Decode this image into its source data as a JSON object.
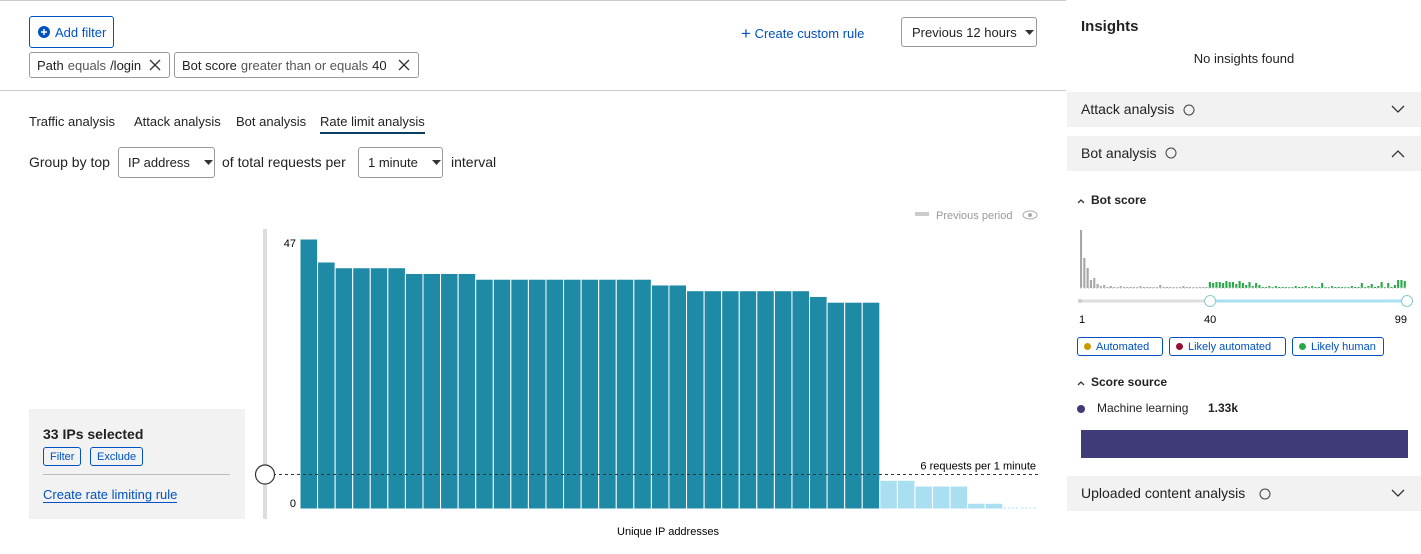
{
  "filters": {
    "add_filter": "Add filter",
    "items": [
      {
        "field": "Path",
        "operator": "equals",
        "value": "/login"
      },
      {
        "field": "Bot score",
        "operator": "greater than or equals",
        "value": "40"
      }
    ]
  },
  "create_custom_rule": "Create custom rule",
  "time_range": "Previous 12 hours",
  "tabs": [
    "Traffic analysis",
    "Attack analysis",
    "Bot analysis",
    "Rate limit analysis"
  ],
  "active_tab": 3,
  "group_by": {
    "prefix": "Group by top",
    "field": "IP address",
    "middle": "of total requests per",
    "interval": "1 minute",
    "suffix": "interval"
  },
  "previous_period": "Previous period",
  "selection": {
    "title": "33 IPs selected",
    "filter": "Filter",
    "exclude": "Exclude",
    "create_rule": "Create rate limiting rule"
  },
  "chart_data": {
    "type": "bar",
    "x_label": "Unique IP addresses",
    "values": [
      47,
      43,
      42,
      42,
      42,
      42,
      41,
      41,
      41,
      41,
      40,
      40,
      40,
      40,
      40,
      40,
      40,
      40,
      40,
      40,
      39,
      39,
      38,
      38,
      38,
      38,
      38,
      38,
      38,
      37,
      36,
      36,
      36,
      5,
      5,
      4,
      4,
      4,
      1,
      1,
      0,
      0
    ],
    "color": "#1f8aa5",
    "below_threshold_color": "#a9dff0",
    "ylim": [
      0,
      47
    ],
    "yticks": [
      0,
      47
    ],
    "threshold": 6,
    "threshold_label": "6 requests per 1 minute"
  },
  "insights": {
    "title": "Insights",
    "empty": "No insights found",
    "sections": [
      "Attack analysis",
      "Bot analysis",
      "Uploaded content analysis"
    ],
    "bot_score": {
      "title": "Bot score",
      "histogram": [
        58,
        30,
        20,
        8,
        10,
        4,
        2,
        3,
        1,
        2,
        1,
        1,
        2,
        1,
        1,
        1,
        1,
        1,
        2,
        1,
        1,
        1,
        1,
        1,
        3,
        1,
        1,
        1,
        1,
        1,
        1,
        2,
        1,
        1,
        1,
        1,
        1,
        1,
        1,
        6,
        5,
        6,
        6,
        5,
        7,
        6,
        6,
        4,
        7,
        5,
        3,
        6,
        2,
        5,
        3,
        1,
        1,
        2,
        1,
        2,
        1,
        1,
        1,
        1,
        1,
        2,
        1,
        1,
        2,
        1,
        2,
        1,
        1,
        5,
        1,
        1,
        2,
        1,
        1,
        1,
        1,
        1,
        2,
        1,
        1,
        5,
        1,
        2,
        4,
        1,
        2,
        6,
        1,
        5,
        1,
        3,
        8,
        8,
        7
      ],
      "range_low": 1,
      "selected_from": 40,
      "range_high": 99,
      "low_color": "#a6a6a6",
      "high_color": "#2aa84a",
      "legend": [
        {
          "name": "Automated",
          "color": "#c99a00"
        },
        {
          "name": "Likely automated",
          "color": "#9b1032"
        },
        {
          "name": "Likely human",
          "color": "#2aa84a"
        }
      ]
    },
    "score_source": {
      "title": "Score source",
      "name": "Machine learning",
      "value": 1330,
      "value_label": "1.33k",
      "color": "#3f3a78"
    }
  }
}
